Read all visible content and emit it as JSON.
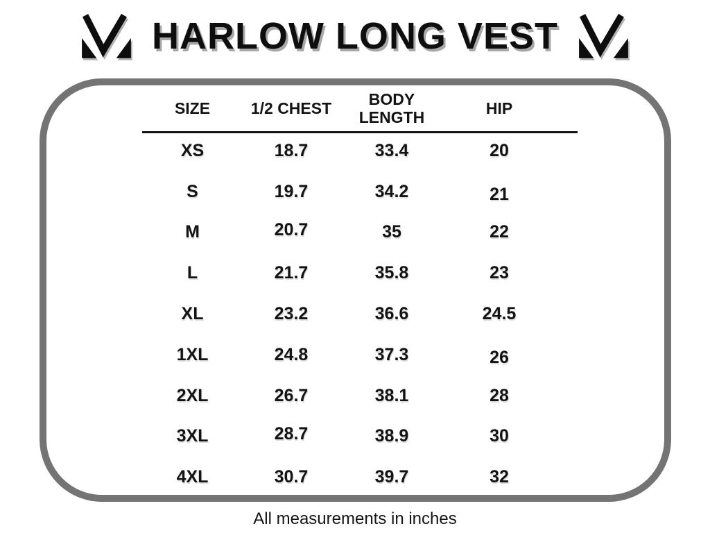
{
  "header": {
    "title": "HARLOW LONG VEST",
    "logo": "m-checkmark-logo"
  },
  "table": {
    "headers": [
      "SIZE",
      "1/2 CHEST",
      "BODY LENGTH",
      "HIP"
    ],
    "rows": [
      [
        "XS",
        "18.7",
        "33.4",
        "20"
      ],
      [
        "S",
        "19.7",
        "34.2",
        "21"
      ],
      [
        "M",
        "20.7",
        "35",
        "22"
      ],
      [
        "L",
        "21.7",
        "35.8",
        "23"
      ],
      [
        "XL",
        "23.2",
        "36.6",
        "24.5"
      ],
      [
        "1XL",
        "24.8",
        "37.3",
        "26"
      ],
      [
        "2XL",
        "26.7",
        "38.1",
        "28"
      ],
      [
        "3XL",
        "28.7",
        "38.9",
        "30"
      ],
      [
        "4XL",
        "30.7",
        "39.7",
        "32"
      ]
    ]
  },
  "footer": {
    "note": "All measurements in inches"
  },
  "colors": {
    "text": "#131313",
    "title_shadow": "#a8a8a8",
    "panel_border": "#747474",
    "background": "#ffffff"
  }
}
